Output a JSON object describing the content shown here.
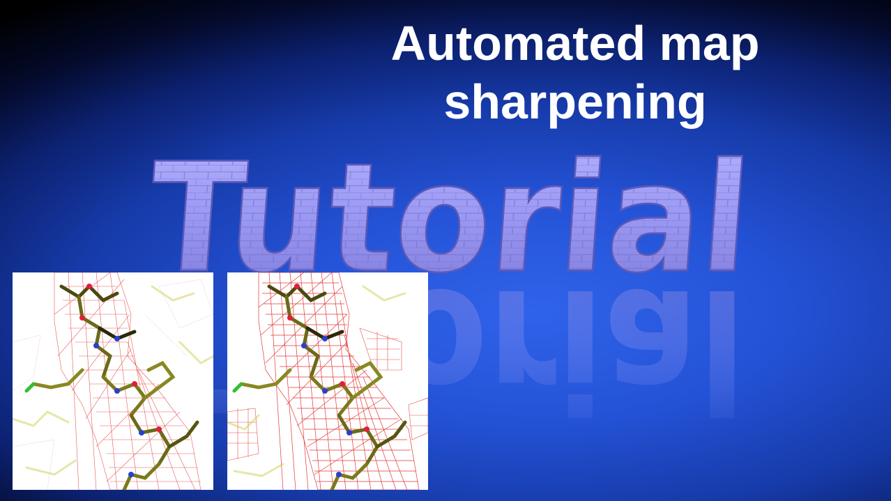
{
  "title": {
    "line1": "Automated map",
    "line2": "sharpening"
  },
  "logo_word": "Tutorial",
  "colors": {
    "background_center": "#2f63ea",
    "background_edge": "#000000",
    "logo_letters": "#9a98f2",
    "density_mesh": "#e02020",
    "carbon": "#7a7a1a",
    "nitrogen": "#2a3fd0",
    "oxygen": "#e0203a"
  },
  "panels": [
    {
      "name": "before-sharpening-map",
      "mesh_density": "sparse"
    },
    {
      "name": "after-sharpening-map",
      "mesh_density": "dense"
    }
  ]
}
